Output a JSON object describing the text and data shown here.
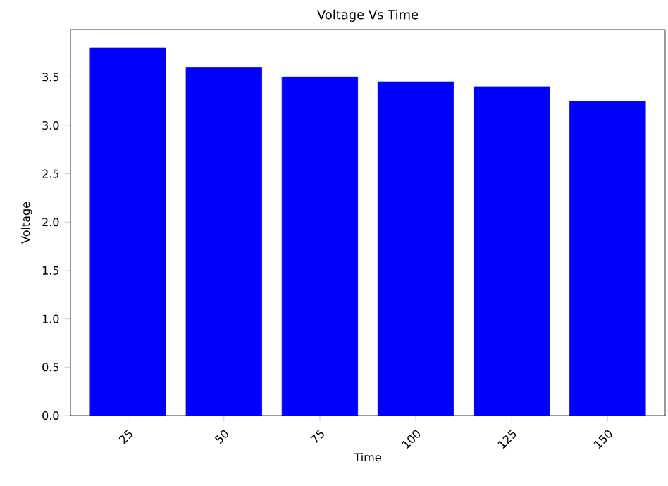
{
  "chart_data": {
    "type": "bar",
    "title": "Voltage Vs Time",
    "xlabel": "Time",
    "ylabel": "Voltage",
    "categories": [
      "25",
      "50",
      "75",
      "100",
      "125",
      "150"
    ],
    "values": [
      3.8,
      3.6,
      3.5,
      3.45,
      3.4,
      3.25
    ],
    "color": "#0000ff",
    "ylim": [
      0,
      3.99
    ],
    "yticks": [
      {
        "value": 0,
        "label": "0.0"
      },
      0.5,
      {
        "value": 1,
        "label": "1.0"
      },
      1.5,
      {
        "value": 2,
        "label": "2.0"
      },
      2.5,
      {
        "value": 3,
        "label": "3.0"
      },
      3.5
    ]
  }
}
